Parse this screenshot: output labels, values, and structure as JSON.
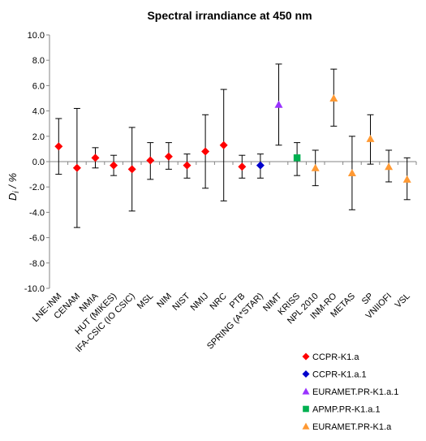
{
  "chart_data": {
    "type": "scatter",
    "title": "Spectral irrandiance at 450 nm",
    "ylabel_main": "D",
    "ylabel_sub": "i",
    "ylabel_suffix": " / %",
    "ylim": [
      -10,
      10
    ],
    "yticks": [
      10,
      8,
      6,
      4,
      2,
      0,
      -2,
      -4,
      -6,
      -8,
      -10
    ],
    "ytick_labels": [
      "10.0",
      "8.0",
      "6.0",
      "4.0",
      "2.0",
      "0.0",
      "-2.0",
      "-4.0",
      "-6.0",
      "-8.0",
      "-10.0"
    ],
    "grid": false,
    "legend_position": "bottom-right",
    "categories": [
      "LNE-INM",
      "CENAM",
      "NMIA",
      "HUT (MIKES)",
      "IFA-CSIC (IO CSIC)",
      "MSL",
      "NIM",
      "NIST",
      "NMIJ",
      "NRC",
      "PTB",
      "SPRING (A*STAR)",
      "NIMT",
      "KRISS",
      "NPL 2010",
      "INM-RO",
      "METAS",
      "SP",
      "VNIIOFI",
      "VSL"
    ],
    "series": [
      {
        "name": "CCPR-K1.a",
        "color": "#ff0000",
        "marker": "diamond",
        "points": [
          {
            "category": "LNE-INM",
            "y": 1.2,
            "low": -1.0,
            "high": 3.4
          },
          {
            "category": "CENAM",
            "y": -0.5,
            "low": -5.2,
            "high": 4.2
          },
          {
            "category": "NMIA",
            "y": 0.3,
            "low": -0.5,
            "high": 1.1
          },
          {
            "category": "HUT (MIKES)",
            "y": -0.3,
            "low": -1.1,
            "high": 0.5
          },
          {
            "category": "IFA-CSIC (IO CSIC)",
            "y": -0.6,
            "low": -3.9,
            "high": 2.7
          },
          {
            "category": "MSL",
            "y": 0.1,
            "low": -1.4,
            "high": 1.5
          },
          {
            "category": "NIM",
            "y": 0.4,
            "low": -0.6,
            "high": 1.5
          },
          {
            "category": "NIST",
            "y": -0.3,
            "low": -1.3,
            "high": 0.6
          },
          {
            "category": "NMIJ",
            "y": 0.8,
            "low": -2.1,
            "high": 3.7
          },
          {
            "category": "NRC",
            "y": 1.3,
            "low": -3.1,
            "high": 5.7
          },
          {
            "category": "PTB",
            "y": -0.4,
            "low": -1.3,
            "high": 0.5
          }
        ]
      },
      {
        "name": "CCPR-K1.a.1",
        "color": "#0000cc",
        "marker": "diamond",
        "points": [
          {
            "category": "SPRING (A*STAR)",
            "y": -0.3,
            "low": -1.3,
            "high": 0.6
          }
        ]
      },
      {
        "name": "EURAMET.PR-K1.a.1",
        "color": "#9933ff",
        "marker": "triangle",
        "points": [
          {
            "category": "NIMT",
            "y": 4.5,
            "low": 1.3,
            "high": 7.7
          }
        ]
      },
      {
        "name": "APMP.PR-K1.a.1",
        "color": "#00b050",
        "marker": "square",
        "points": [
          {
            "category": "KRISS",
            "y": 0.3,
            "low": -1.1,
            "high": 1.5
          }
        ]
      },
      {
        "name": "EURAMET.PR-K1.a",
        "color": "#ff9933",
        "marker": "triangle",
        "points": [
          {
            "category": "NPL 2010",
            "y": -0.5,
            "low": -1.9,
            "high": 0.9
          },
          {
            "category": "INM-RO",
            "y": 5.0,
            "low": 2.8,
            "high": 7.3
          },
          {
            "category": "METAS",
            "y": -0.9,
            "low": -3.8,
            "high": 2.0
          },
          {
            "category": "SP",
            "y": 1.8,
            "low": -0.2,
            "high": 3.7
          },
          {
            "category": "VNIIOFI",
            "y": -0.4,
            "low": -1.6,
            "high": 0.9
          },
          {
            "category": "VSL",
            "y": -1.4,
            "low": -3.0,
            "high": 0.3
          }
        ]
      }
    ]
  }
}
